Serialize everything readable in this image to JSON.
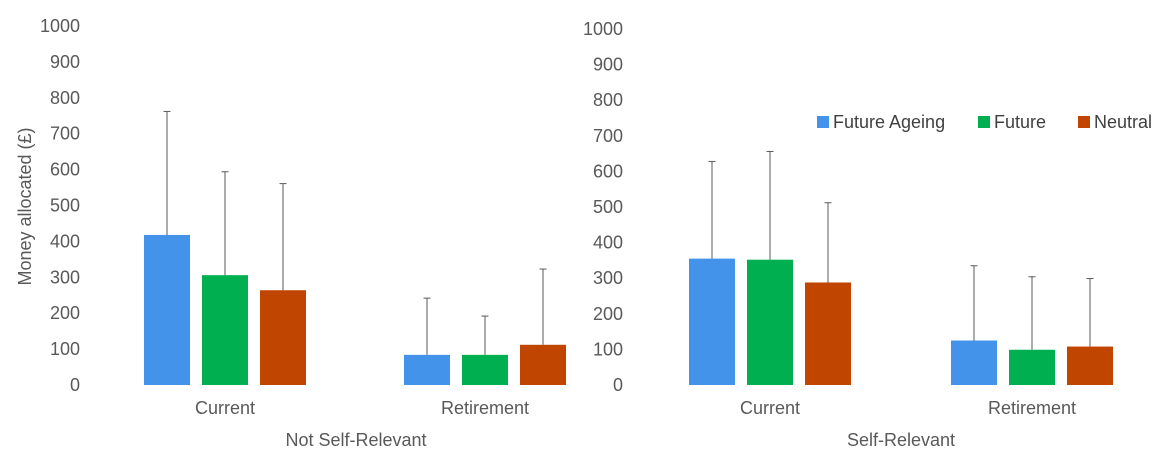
{
  "chart_data": [
    {
      "type": "bar",
      "xlabel": "Not Self-Relevant",
      "ylabel": "Money allocated (£)",
      "ylim": [
        0,
        1000
      ],
      "yticks": [
        0,
        100,
        200,
        300,
        400,
        500,
        600,
        700,
        800,
        900,
        1000
      ],
      "categories": [
        "Current",
        "Retirement"
      ],
      "series": [
        {
          "name": "Future Ageing",
          "color": "#4293E9",
          "values": [
            418,
            84
          ],
          "error_upper": [
            762,
            242
          ]
        },
        {
          "name": "Future",
          "color": "#00B050",
          "values": [
            306,
            84
          ],
          "error_upper": [
            594,
            192
          ]
        },
        {
          "name": "Neutral",
          "color": "#C04600",
          "values": [
            264,
            112
          ],
          "error_upper": [
            561,
            323
          ]
        }
      ],
      "grid": false
    },
    {
      "type": "bar",
      "xlabel": "Self-Relevant",
      "ylabel": "",
      "ylim": [
        0,
        1000
      ],
      "yticks": [
        0,
        100,
        200,
        300,
        400,
        500,
        600,
        700,
        800,
        900,
        1000
      ],
      "categories": [
        "Current",
        "Retirement"
      ],
      "series": [
        {
          "name": "Future Ageing",
          "color": "#4293E9",
          "values": [
            355,
            125
          ],
          "error_upper": [
            628,
            335
          ]
        },
        {
          "name": "Future",
          "color": "#00B050",
          "values": [
            352,
            99
          ],
          "error_upper": [
            656,
            304
          ]
        },
        {
          "name": "Neutral",
          "color": "#C04600",
          "values": [
            288,
            108
          ],
          "error_upper": [
            512,
            299
          ]
        }
      ],
      "grid": false,
      "legend_position": "top-right"
    }
  ]
}
